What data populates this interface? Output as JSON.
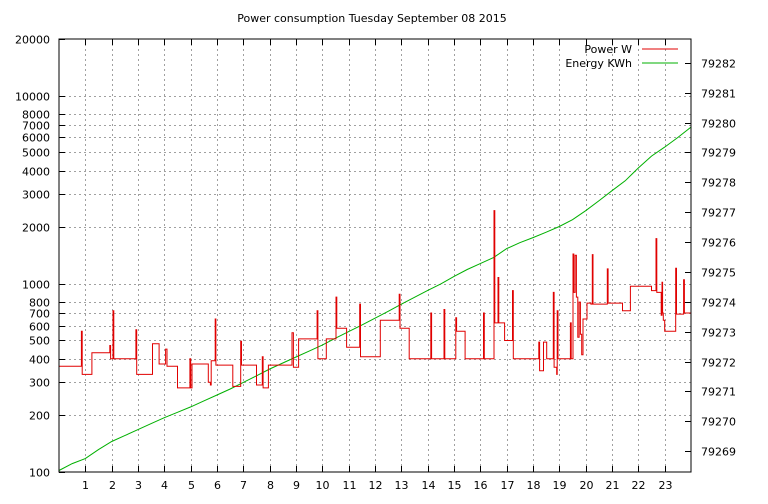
{
  "chart_data": {
    "type": "line",
    "title": "Power consumption Tuesday September 08 2015",
    "xlabel": "",
    "ylabel": "",
    "x_ticks": [
      1,
      2,
      3,
      4,
      5,
      6,
      7,
      8,
      9,
      10,
      11,
      12,
      13,
      14,
      15,
      16,
      17,
      18,
      19,
      20,
      21,
      22,
      23
    ],
    "xlim": [
      0,
      24
    ],
    "y_axis": {
      "scale": "log",
      "lim": [
        100,
        20000
      ],
      "ticks": [
        100,
        200,
        300,
        400,
        500,
        600,
        700,
        800,
        1000,
        2000,
        3000,
        4000,
        5000,
        6000,
        7000,
        8000,
        10000,
        20000
      ]
    },
    "y2_axis": {
      "scale": "linear",
      "lim": [
        79268.3,
        79282.8
      ],
      "ticks": [
        79269,
        79270,
        79271,
        79272,
        79273,
        79274,
        79275,
        79276,
        79277,
        79278,
        79279,
        79280,
        79281,
        79282
      ]
    },
    "grid": true,
    "legend": {
      "placement": "top-right",
      "entries": [
        {
          "name": "Power W",
          "color": "#e00000"
        },
        {
          "name": "Energy KWh",
          "color": "#00b000"
        }
      ]
    },
    "series": [
      {
        "name": "Power W",
        "color": "#e00000",
        "axis": "left",
        "step": true,
        "points": [
          [
            0,
            365
          ],
          [
            0.85,
            365
          ],
          [
            0.85,
            560
          ],
          [
            0.88,
            330
          ],
          [
            1.05,
            330
          ],
          [
            1.25,
            330
          ],
          [
            1.25,
            430
          ],
          [
            1.9,
            430
          ],
          [
            1.93,
            470
          ],
          [
            1.96,
            400
          ],
          [
            2.05,
            720
          ],
          [
            2.08,
            400
          ],
          [
            2.9,
            400
          ],
          [
            2.92,
            570
          ],
          [
            2.95,
            330
          ],
          [
            3.55,
            330
          ],
          [
            3.55,
            480
          ],
          [
            3.8,
            480
          ],
          [
            3.8,
            375
          ],
          [
            4.0,
            375
          ],
          [
            4.05,
            450
          ],
          [
            4.1,
            365
          ],
          [
            4.5,
            365
          ],
          [
            4.5,
            280
          ],
          [
            4.95,
            280
          ],
          [
            4.97,
            400
          ],
          [
            5.0,
            280
          ],
          [
            5.05,
            375
          ],
          [
            5.65,
            375
          ],
          [
            5.67,
            300
          ],
          [
            5.75,
            290
          ],
          [
            5.78,
            390
          ],
          [
            5.9,
            390
          ],
          [
            5.93,
            650
          ],
          [
            5.96,
            370
          ],
          [
            6.6,
            370
          ],
          [
            6.6,
            285
          ],
          [
            6.88,
            285
          ],
          [
            6.9,
            495
          ],
          [
            6.93,
            370
          ],
          [
            7.5,
            370
          ],
          [
            7.5,
            290
          ],
          [
            7.7,
            290
          ],
          [
            7.72,
            410
          ],
          [
            7.75,
            280
          ],
          [
            7.95,
            280
          ],
          [
            7.95,
            370
          ],
          [
            8.85,
            370
          ],
          [
            8.85,
            550
          ],
          [
            8.9,
            360
          ],
          [
            9.1,
            360
          ],
          [
            9.1,
            510
          ],
          [
            9.8,
            510
          ],
          [
            9.8,
            720
          ],
          [
            9.83,
            400
          ],
          [
            10.15,
            400
          ],
          [
            10.15,
            510
          ],
          [
            10.5,
            510
          ],
          [
            10.52,
            850
          ],
          [
            10.55,
            580
          ],
          [
            10.9,
            580
          ],
          [
            10.92,
            460
          ],
          [
            11.4,
            460
          ],
          [
            11.42,
            780
          ],
          [
            11.45,
            410
          ],
          [
            12.2,
            410
          ],
          [
            12.2,
            640
          ],
          [
            12.9,
            640
          ],
          [
            12.92,
            880
          ],
          [
            12.95,
            580
          ],
          [
            13.3,
            580
          ],
          [
            13.3,
            400
          ],
          [
            14.1,
            400
          ],
          [
            14.12,
            700
          ],
          [
            14.15,
            400
          ],
          [
            14.6,
            400
          ],
          [
            14.62,
            730
          ],
          [
            14.65,
            400
          ],
          [
            15.05,
            400
          ],
          [
            15.07,
            660
          ],
          [
            15.1,
            560
          ],
          [
            15.4,
            560
          ],
          [
            15.42,
            400
          ],
          [
            16.1,
            400
          ],
          [
            16.12,
            700
          ],
          [
            16.15,
            400
          ],
          [
            16.5,
            400
          ],
          [
            16.52,
            2450
          ],
          [
            16.55,
            620
          ],
          [
            16.65,
            620
          ],
          [
            16.67,
            1080
          ],
          [
            16.7,
            620
          ],
          [
            16.9,
            620
          ],
          [
            16.92,
            500
          ],
          [
            17.2,
            500
          ],
          [
            17.22,
            920
          ],
          [
            17.25,
            400
          ],
          [
            18.2,
            400
          ],
          [
            18.22,
            490
          ],
          [
            18.25,
            345
          ],
          [
            18.4,
            490
          ],
          [
            18.5,
            490
          ],
          [
            18.52,
            400
          ],
          [
            18.75,
            400
          ],
          [
            18.77,
            900
          ],
          [
            18.8,
            360
          ],
          [
            18.9,
            330
          ],
          [
            18.92,
            720
          ],
          [
            18.95,
            400
          ],
          [
            19.4,
            400
          ],
          [
            19.42,
            620
          ],
          [
            19.45,
            400
          ],
          [
            19.5,
            400
          ],
          [
            19.52,
            1440
          ],
          [
            19.55,
            900
          ],
          [
            19.6,
            1420
          ],
          [
            19.65,
            850
          ],
          [
            19.7,
            520
          ],
          [
            19.75,
            800
          ],
          [
            19.8,
            540
          ],
          [
            19.85,
            420
          ],
          [
            19.9,
            650
          ],
          [
            20.0,
            650
          ],
          [
            20.05,
            790
          ],
          [
            20.2,
            780
          ],
          [
            20.25,
            1430
          ],
          [
            20.28,
            780
          ],
          [
            20.8,
            780
          ],
          [
            20.82,
            1200
          ],
          [
            20.85,
            790
          ],
          [
            21.4,
            790
          ],
          [
            21.4,
            720
          ],
          [
            21.7,
            720
          ],
          [
            21.7,
            970
          ],
          [
            22.5,
            970
          ],
          [
            22.5,
            920
          ],
          [
            22.65,
            920
          ],
          [
            22.67,
            1740
          ],
          [
            22.7,
            900
          ],
          [
            22.85,
            900
          ],
          [
            22.87,
            680
          ],
          [
            22.9,
            1020
          ],
          [
            22.92,
            700
          ],
          [
            22.95,
            640
          ],
          [
            23.0,
            560
          ],
          [
            23.4,
            560
          ],
          [
            23.42,
            1210
          ],
          [
            23.45,
            690
          ],
          [
            23.7,
            690
          ],
          [
            23.72,
            1050
          ],
          [
            23.75,
            700
          ],
          [
            24.0,
            700
          ]
        ]
      },
      {
        "name": "Energy KWh",
        "color": "#00b000",
        "axis": "right",
        "step": false,
        "points": [
          [
            0,
            79268.35
          ],
          [
            0.5,
            79268.58
          ],
          [
            1,
            79268.75
          ],
          [
            1.5,
            79269.05
          ],
          [
            2,
            79269.32
          ],
          [
            2.5,
            79269.52
          ],
          [
            3,
            79269.72
          ],
          [
            3.5,
            79269.92
          ],
          [
            4,
            79270.12
          ],
          [
            4.5,
            79270.3
          ],
          [
            5,
            79270.48
          ],
          [
            5.5,
            79270.68
          ],
          [
            6,
            79270.88
          ],
          [
            6.5,
            79271.08
          ],
          [
            7,
            79271.3
          ],
          [
            7.5,
            79271.52
          ],
          [
            8,
            79271.75
          ],
          [
            8.5,
            79271.95
          ],
          [
            9,
            79272.15
          ],
          [
            9.5,
            79272.35
          ],
          [
            10,
            79272.55
          ],
          [
            10.5,
            79272.78
          ],
          [
            11,
            79273.0
          ],
          [
            11.5,
            79273.22
          ],
          [
            12,
            79273.45
          ],
          [
            12.5,
            79273.68
          ],
          [
            13,
            79273.92
          ],
          [
            13.5,
            79274.15
          ],
          [
            14,
            79274.38
          ],
          [
            14.5,
            79274.6
          ],
          [
            15,
            79274.85
          ],
          [
            15.5,
            79275.08
          ],
          [
            16,
            79275.28
          ],
          [
            16.5,
            79275.48
          ],
          [
            17,
            79275.78
          ],
          [
            17.5,
            79275.98
          ],
          [
            18,
            79276.15
          ],
          [
            18.5,
            79276.33
          ],
          [
            19,
            79276.52
          ],
          [
            19.5,
            79276.75
          ],
          [
            20,
            79277.05
          ],
          [
            20.5,
            79277.38
          ],
          [
            21,
            79277.72
          ],
          [
            21.5,
            79278.05
          ],
          [
            22,
            79278.48
          ],
          [
            22.5,
            79278.88
          ],
          [
            23,
            79279.18
          ],
          [
            23.5,
            79279.5
          ],
          [
            24,
            79279.85
          ]
        ]
      }
    ]
  }
}
